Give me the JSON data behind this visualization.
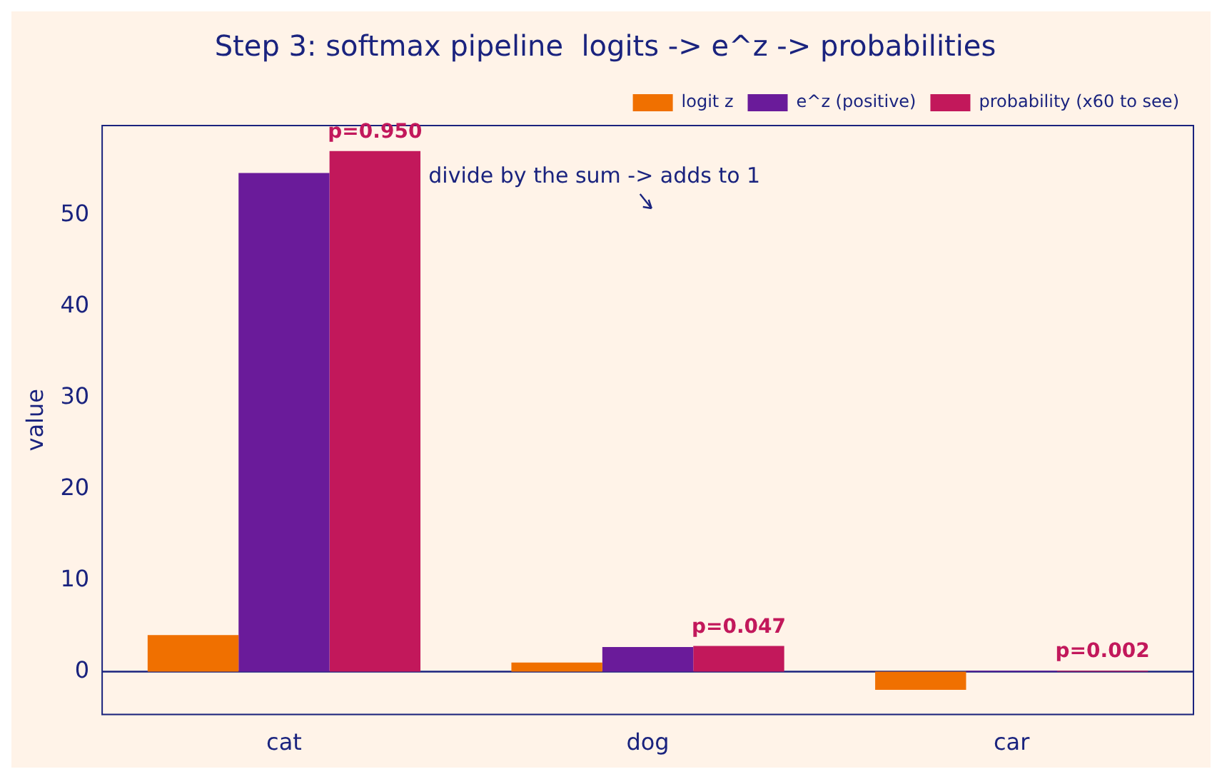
{
  "chart_data": {
    "type": "bar",
    "title": "Step 3: softmax pipeline  logits -> e^z -> probabilities",
    "ylabel": "value",
    "categories": [
      "cat",
      "dog",
      "car"
    ],
    "series": [
      {
        "name": "logit z",
        "color": "#f07000",
        "values": [
          4,
          1,
          -2
        ]
      },
      {
        "name": "e^z (positive)",
        "color": "#6a1b9a",
        "values": [
          54.6,
          2.7,
          0.1
        ]
      },
      {
        "name": "probability (x60 to see)",
        "color": "#c2185b",
        "values": [
          57.0,
          2.8,
          0.1
        ]
      }
    ],
    "ylim": [
      -4.7,
      59.8
    ],
    "yticks": [
      0,
      10,
      20,
      30,
      40,
      50
    ],
    "grid": false,
    "legend": "top right",
    "ref_lines": [
      {
        "axis": "y",
        "value": 0,
        "color": "#1a237e"
      }
    ],
    "annotations": [
      "divide by the sum -> adds to 1",
      "p=0.950",
      "p=0.047",
      "p=0.002"
    ]
  }
}
